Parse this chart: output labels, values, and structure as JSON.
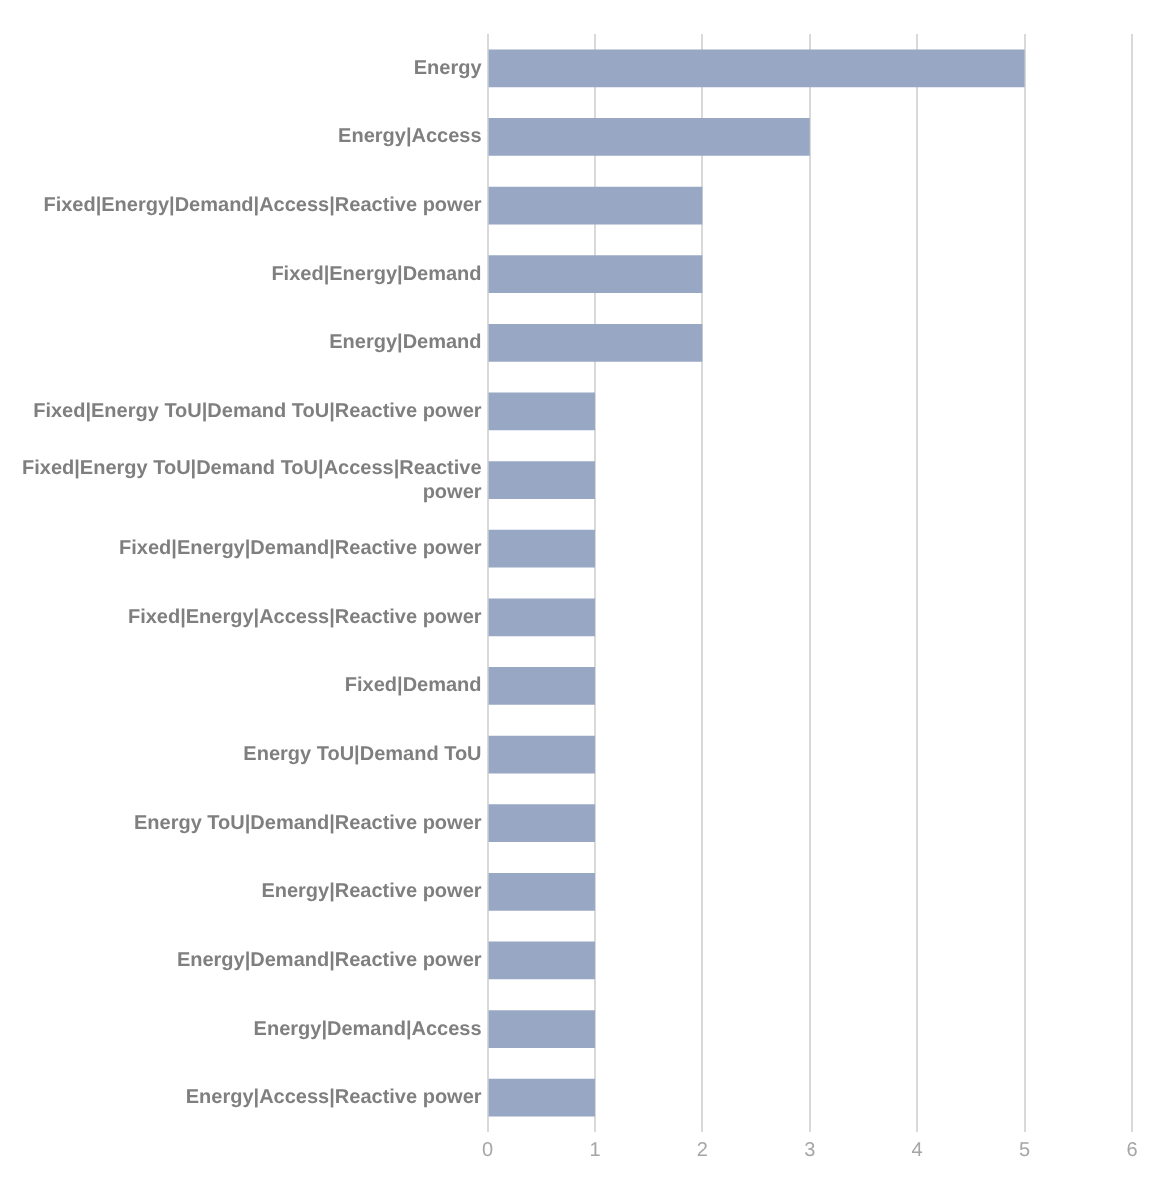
{
  "chart_data": {
    "type": "bar",
    "orientation": "horizontal",
    "categories": [
      "Energy",
      "Energy|Access",
      "Fixed|Energy|Demand|Access|Reactive power",
      "Fixed|Energy|Demand",
      "Energy|Demand",
      "Fixed|Energy ToU|Demand ToU|Reactive power",
      "Fixed|Energy ToU|Demand ToU|Access|Reactive power",
      "Fixed|Energy|Demand|Reactive power",
      "Fixed|Energy|Access|Reactive power",
      "Fixed|Demand",
      "Energy ToU|Demand ToU",
      "Energy ToU|Demand|Reactive power",
      "Energy|Reactive power",
      "Energy|Demand|Reactive power",
      "Energy|Demand|Access",
      "Energy|Access|Reactive power"
    ],
    "values": [
      5,
      3,
      2,
      2,
      2,
      1,
      1,
      1,
      1,
      1,
      1,
      1,
      1,
      1,
      1,
      1
    ],
    "color": "#98a8c4",
    "xlim": [
      0,
      6
    ],
    "xticks": [
      0,
      1,
      2,
      3,
      4,
      5,
      6
    ],
    "grid": "x",
    "legend": false
  }
}
